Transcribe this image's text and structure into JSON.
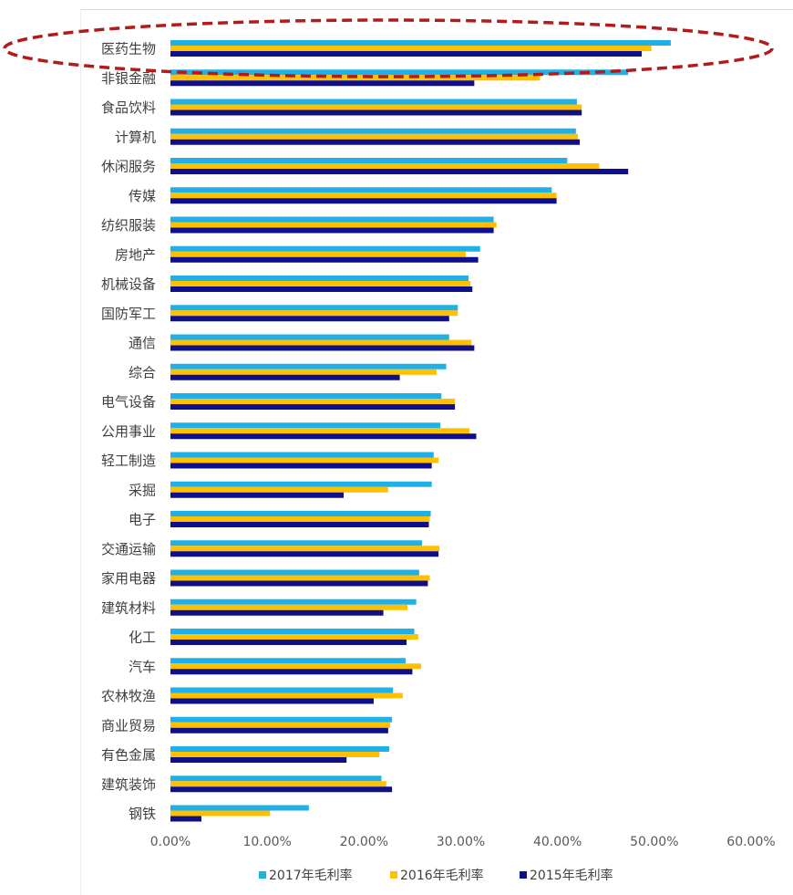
{
  "chart_data": {
    "type": "bar",
    "orientation": "horizontal",
    "categories": [
      "医药生物",
      "非银金融",
      "食品饮料",
      "计算机",
      "休闲服务",
      "传媒",
      "纺织服装",
      "房地产",
      "机械设备",
      "国防军工",
      "通信",
      "综合",
      "电气设备",
      "公用事业",
      "轻工制造",
      "采掘",
      "电子",
      "交通运输",
      "家用电器",
      "建筑材料",
      "化工",
      "汽车",
      "农林牧渔",
      "商业贸易",
      "有色金属",
      "建筑装饰",
      "钢铁"
    ],
    "series": [
      {
        "name": "2017年毛利率",
        "color": "#1fb0e8",
        "values": [
          0.517,
          0.473,
          0.42,
          0.419,
          0.41,
          0.394,
          0.334,
          0.32,
          0.308,
          0.297,
          0.288,
          0.285,
          0.28,
          0.279,
          0.272,
          0.27,
          0.269,
          0.26,
          0.257,
          0.254,
          0.252,
          0.243,
          0.23,
          0.229,
          0.226,
          0.218,
          0.143
        ]
      },
      {
        "name": "2016年毛利率",
        "color": "#ffc000",
        "values": [
          0.497,
          0.382,
          0.425,
          0.421,
          0.443,
          0.399,
          0.337,
          0.305,
          0.31,
          0.297,
          0.311,
          0.275,
          0.294,
          0.309,
          0.277,
          0.225,
          0.268,
          0.278,
          0.268,
          0.245,
          0.256,
          0.259,
          0.24,
          0.227,
          0.216,
          0.223,
          0.103
        ]
      },
      {
        "name": "2015年毛利率",
        "color": "#0f0f8c",
        "values": [
          0.487,
          0.314,
          0.425,
          0.423,
          0.473,
          0.399,
          0.334,
          0.318,
          0.312,
          0.288,
          0.314,
          0.237,
          0.294,
          0.316,
          0.27,
          0.179,
          0.267,
          0.277,
          0.266,
          0.22,
          0.244,
          0.25,
          0.21,
          0.225,
          0.182,
          0.229,
          0.032
        ]
      }
    ],
    "xlim": [
      0,
      0.6
    ],
    "tick_labels": [
      "0.00%",
      "10.00%",
      "20.00%",
      "30.00%",
      "40.00%",
      "50.00%",
      "60.00%"
    ],
    "grid": false,
    "legend_position": "bottom",
    "highlight": {
      "category": "医药生物",
      "style": "red dashed ellipse",
      "color": "#b31b1b"
    }
  }
}
